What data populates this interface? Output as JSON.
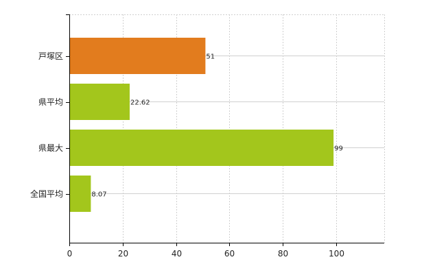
{
  "chart_data": {
    "type": "bar",
    "orientation": "horizontal",
    "title": "",
    "xlabel": "",
    "ylabel": "",
    "categories": [
      "戸塚区",
      "県平均",
      "県最大",
      "全国平均"
    ],
    "values": [
      51,
      22.62,
      99,
      8.07
    ],
    "value_labels": [
      "51",
      "22.62",
      "99",
      "8.07"
    ],
    "bar_colors": [
      "#e27c1e",
      "#a3c61c",
      "#a3c61c",
      "#a3c61c"
    ],
    "xlim": [
      0,
      118
    ],
    "x_ticks": [
      0,
      20,
      40,
      60,
      80,
      100
    ],
    "x_tick_labels": [
      "0",
      "20",
      "40",
      "60",
      "80",
      "100"
    ],
    "grid": true,
    "legend": "none"
  }
}
